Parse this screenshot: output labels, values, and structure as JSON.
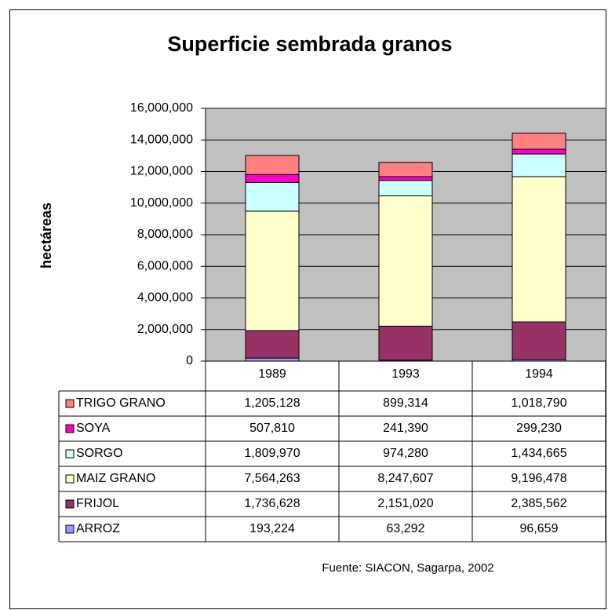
{
  "chart_data": {
    "type": "stacked_bar",
    "title": "Superficie sembrada granos",
    "y_label": "hectáreas",
    "source": "Fuente: SIACON, Sagarpa, 2002",
    "categories": [
      "1989",
      "1993",
      "1994"
    ],
    "series": [
      {
        "name": "ARROZ",
        "color": "#9999ff",
        "values": [
          193224,
          63292,
          96659
        ],
        "value_labels": [
          "193,224",
          "63,292",
          "96,659"
        ]
      },
      {
        "name": "FRIJOL",
        "color": "#993366",
        "values": [
          1736628,
          2151020,
          2385562
        ],
        "value_labels": [
          "1,736,628",
          "2,151,020",
          "2,385,562"
        ]
      },
      {
        "name": "MAIZ GRANO",
        "color": "#ffffcc",
        "values": [
          7564263,
          8247607,
          9196478
        ],
        "value_labels": [
          "7,564,263",
          "8,247,607",
          "9,196,478"
        ]
      },
      {
        "name": "SORGO",
        "color": "#ccffff",
        "values": [
          1809970,
          974280,
          1434665
        ],
        "value_labels": [
          "1,809,970",
          "974,280",
          "1,434,665"
        ]
      },
      {
        "name": "SOYA",
        "color": "#ff00cc",
        "values": [
          507810,
          241390,
          299230
        ],
        "value_labels": [
          "507,810",
          "241,390",
          "299,230"
        ]
      },
      {
        "name": "TRIGO GRANO",
        "color": "#ff8080",
        "values": [
          1205128,
          899314,
          1018790
        ],
        "value_labels": [
          "1,205,128",
          "899,314",
          "1,018,790"
        ]
      }
    ],
    "ylim": [
      0,
      16000000
    ],
    "yticks": [
      0,
      {
        "value": 2000000,
        "label": "2,000,000"
      },
      {
        "value": 4000000,
        "label": "4,000,000"
      },
      {
        "value": 6000000,
        "label": "6,000,000"
      },
      {
        "value": 8000000,
        "label": "8,000,000"
      },
      {
        "value": 10000000,
        "label": "10,000,000"
      },
      {
        "value": 12000000,
        "label": "12,000,000"
      },
      {
        "value": 14000000,
        "label": "14,000,000"
      },
      {
        "value": 16000000,
        "label": "16,000,000"
      }
    ],
    "grid": true,
    "plot_background": "#c0c0c0"
  }
}
